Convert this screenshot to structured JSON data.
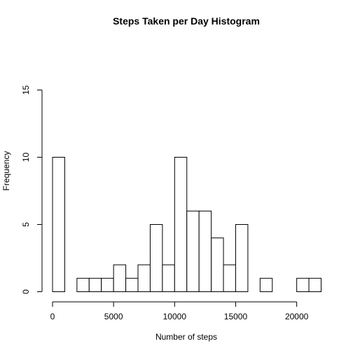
{
  "chart_data": {
    "type": "bar",
    "title": "Steps Taken per Day Histogram",
    "xlabel": "Number of steps",
    "ylabel": "Frequency",
    "bin_width": 1000,
    "bins": [
      {
        "start": 0,
        "end": 1000,
        "count": 10
      },
      {
        "start": 1000,
        "end": 2000,
        "count": 0
      },
      {
        "start": 2000,
        "end": 3000,
        "count": 1
      },
      {
        "start": 3000,
        "end": 4000,
        "count": 1
      },
      {
        "start": 4000,
        "end": 5000,
        "count": 1
      },
      {
        "start": 5000,
        "end": 6000,
        "count": 2
      },
      {
        "start": 6000,
        "end": 7000,
        "count": 1
      },
      {
        "start": 7000,
        "end": 8000,
        "count": 2
      },
      {
        "start": 8000,
        "end": 9000,
        "count": 5
      },
      {
        "start": 9000,
        "end": 10000,
        "count": 2
      },
      {
        "start": 10000,
        "end": 11000,
        "count": 10
      },
      {
        "start": 11000,
        "end": 12000,
        "count": 6
      },
      {
        "start": 12000,
        "end": 13000,
        "count": 6
      },
      {
        "start": 13000,
        "end": 14000,
        "count": 4
      },
      {
        "start": 14000,
        "end": 15000,
        "count": 2
      },
      {
        "start": 15000,
        "end": 16000,
        "count": 5
      },
      {
        "start": 16000,
        "end": 17000,
        "count": 0
      },
      {
        "start": 17000,
        "end": 18000,
        "count": 1
      },
      {
        "start": 18000,
        "end": 19000,
        "count": 0
      },
      {
        "start": 19000,
        "end": 20000,
        "count": 0
      },
      {
        "start": 20000,
        "end": 21000,
        "count": 1
      },
      {
        "start": 21000,
        "end": 22000,
        "count": 1
      }
    ],
    "xlim": [
      0,
      22000
    ],
    "ylim": [
      0,
      15
    ],
    "xticks": [
      0,
      5000,
      10000,
      15000,
      20000
    ],
    "xtick_labels": [
      "0",
      "5000",
      "10000",
      "15000",
      "20000"
    ],
    "yticks": [
      0,
      5,
      10,
      15
    ],
    "ytick_labels": [
      "0",
      "5",
      "10",
      "15"
    ],
    "grid": false,
    "colors": {
      "bar_fill": "#ffffff",
      "bar_stroke": "#000000"
    }
  }
}
